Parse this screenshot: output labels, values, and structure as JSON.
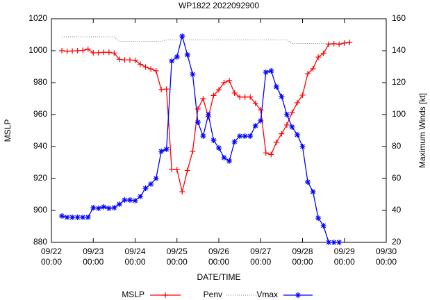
{
  "chart_data": {
    "type": "line",
    "title": "WP1822 2022092900",
    "x_label": "DATE/TIME",
    "y_label": "MSLP",
    "y2_label": "Maximum Winds [kt]",
    "xlim": [
      0,
      8
    ],
    "xticks": [
      {
        "value": 0,
        "label": "09/22\n00:00"
      },
      {
        "value": 1,
        "label": "09/23\n00:00"
      },
      {
        "value": 2,
        "label": "09/24\n00:00"
      },
      {
        "value": 3,
        "label": "09/25\n00:00"
      },
      {
        "value": 4,
        "label": "09/26\n00:00"
      },
      {
        "value": 5,
        "label": "09/27\n00:00"
      },
      {
        "value": 6,
        "label": "09/28\n00:00"
      },
      {
        "value": 7,
        "label": "09/29\n00:00"
      },
      {
        "value": 8,
        "label": "09/30\n00:00"
      }
    ],
    "ylim": [
      880,
      1020
    ],
    "yticks": [
      880,
      900,
      920,
      940,
      960,
      980,
      1000,
      1020
    ],
    "y2lim": [
      20,
      160
    ],
    "y2ticks": [
      20,
      40,
      60,
      80,
      100,
      120,
      140,
      160
    ],
    "grid": false,
    "legend": "bottom",
    "series": [
      {
        "name": "MSLP",
        "color": "#ff0000",
        "marker": "plus",
        "axis": "y",
        "x": [
          0.25,
          0.375,
          0.5,
          0.625,
          0.75,
          0.875,
          1,
          1.125,
          1.25,
          1.375,
          1.5,
          1.625,
          1.75,
          1.875,
          2,
          2.125,
          2.25,
          2.375,
          2.5,
          2.625,
          2.75,
          2.875,
          3,
          3.125,
          3.25,
          3.375,
          3.5,
          3.625,
          3.75,
          3.875,
          4,
          4.125,
          4.25,
          4.375,
          4.5,
          4.625,
          4.75,
          4.875,
          5,
          5.125,
          5.25,
          5.375,
          5.5,
          5.625,
          5.75,
          5.875,
          6,
          6.125,
          6.25,
          6.375,
          6.5,
          6.625,
          6.75,
          6.875,
          7,
          7.125
        ],
        "values": [
          1000,
          999.6,
          999.8,
          1000,
          1000.2,
          1001,
          998.7,
          998.7,
          999,
          999,
          998.5,
          994.6,
          994.2,
          994.2,
          993.9,
          991.5,
          989.8,
          988.6,
          987.4,
          975.6,
          976,
          925.7,
          925.5,
          911.7,
          925,
          937,
          963.5,
          970,
          958.5,
          972,
          975.5,
          980,
          981.3,
          973.5,
          971,
          971,
          971,
          967,
          963,
          936,
          935,
          942.6,
          948,
          953.5,
          961.3,
          967.4,
          972.2,
          985.6,
          988.7,
          996,
          998.3,
          1004,
          1004.4,
          1004,
          1004.8,
          1005.2
        ]
      },
      {
        "name": "Penv",
        "color": "#555555",
        "marker": "none",
        "dash": "dotted",
        "axis": "y",
        "x": [
          0.25,
          0.375,
          0.5,
          0.625,
          0.75,
          0.875,
          1,
          1.125,
          1.25,
          1.375,
          1.5,
          1.625,
          1.75,
          1.875,
          2,
          2.125,
          2.25,
          2.375,
          2.5,
          2.625,
          2.75,
          2.875,
          3,
          3.125,
          3.25,
          3.375,
          3.5,
          3.625,
          3.75,
          3.875,
          4,
          4.125,
          4.25,
          4.375,
          4.5,
          4.625,
          4.75,
          4.875,
          5,
          5.125,
          5.25,
          5.375,
          5.5,
          5.625,
          5.75,
          5.875,
          6,
          6.125,
          6.25,
          6.375,
          6.5,
          6.625,
          6.75,
          6.875,
          7,
          7.125
        ],
        "values": [
          1008.7,
          1008.7,
          1008.7,
          1008.7,
          1008.7,
          1008.7,
          1008.7,
          1008.7,
          1008.7,
          1008.7,
          1008.7,
          1005.8,
          1005.8,
          1005.8,
          1005.8,
          1005.8,
          1005.8,
          1005.8,
          1005.8,
          1005.8,
          1006.8,
          1006.8,
          1006.8,
          1006.8,
          1006.8,
          1006.8,
          1006.8,
          1006.8,
          1006.8,
          1006.8,
          1006.8,
          1006.8,
          1006.8,
          1006.8,
          1006.8,
          1006.8,
          1006.8,
          1006.8,
          1006.8,
          1006.8,
          1006.8,
          1006.8,
          1006.8,
          1006.8,
          1004.6,
          1004.6,
          1004.6,
          1004.6,
          1004.6,
          1004.6,
          1004.6,
          1004.6,
          1004.6,
          1004.6,
          1004.6,
          1004.6
        ]
      },
      {
        "name": "Vmax",
        "color": "#0000ff",
        "marker": "star",
        "axis": "y2",
        "x": [
          0.25,
          0.375,
          0.5,
          0.625,
          0.75,
          0.875,
          1,
          1.125,
          1.25,
          1.375,
          1.5,
          1.625,
          1.75,
          1.875,
          2,
          2.125,
          2.25,
          2.375,
          2.5,
          2.625,
          2.75,
          2.875,
          3,
          3.125,
          3.25,
          3.375,
          3.5,
          3.625,
          3.75,
          3.875,
          4,
          4.125,
          4.25,
          4.375,
          4.5,
          4.625,
          4.75,
          4.875,
          5,
          5.125,
          5.25,
          5.375,
          5.5,
          5.625,
          5.75,
          5.875,
          6,
          6.125,
          6.25,
          6.375,
          6.5,
          6.625,
          6.75,
          6.875
        ],
        "values": [
          36.5,
          35.7,
          35.7,
          35.7,
          35.7,
          35.7,
          41.7,
          41.3,
          42.2,
          41.3,
          41.7,
          43.9,
          46.5,
          46.5,
          46.1,
          48.7,
          53.9,
          56.5,
          60,
          77,
          78.3,
          133.5,
          136.1,
          149.1,
          137.4,
          125.2,
          95.2,
          86.5,
          100,
          83.9,
          79.1,
          73,
          70.9,
          83,
          86.5,
          86.5,
          86.5,
          93,
          96.1,
          126.5,
          127.4,
          117.4,
          111.3,
          100,
          92.2,
          87.4,
          80,
          57.8,
          51.7,
          35.2,
          30.4,
          20,
          20,
          20
        ]
      }
    ]
  }
}
